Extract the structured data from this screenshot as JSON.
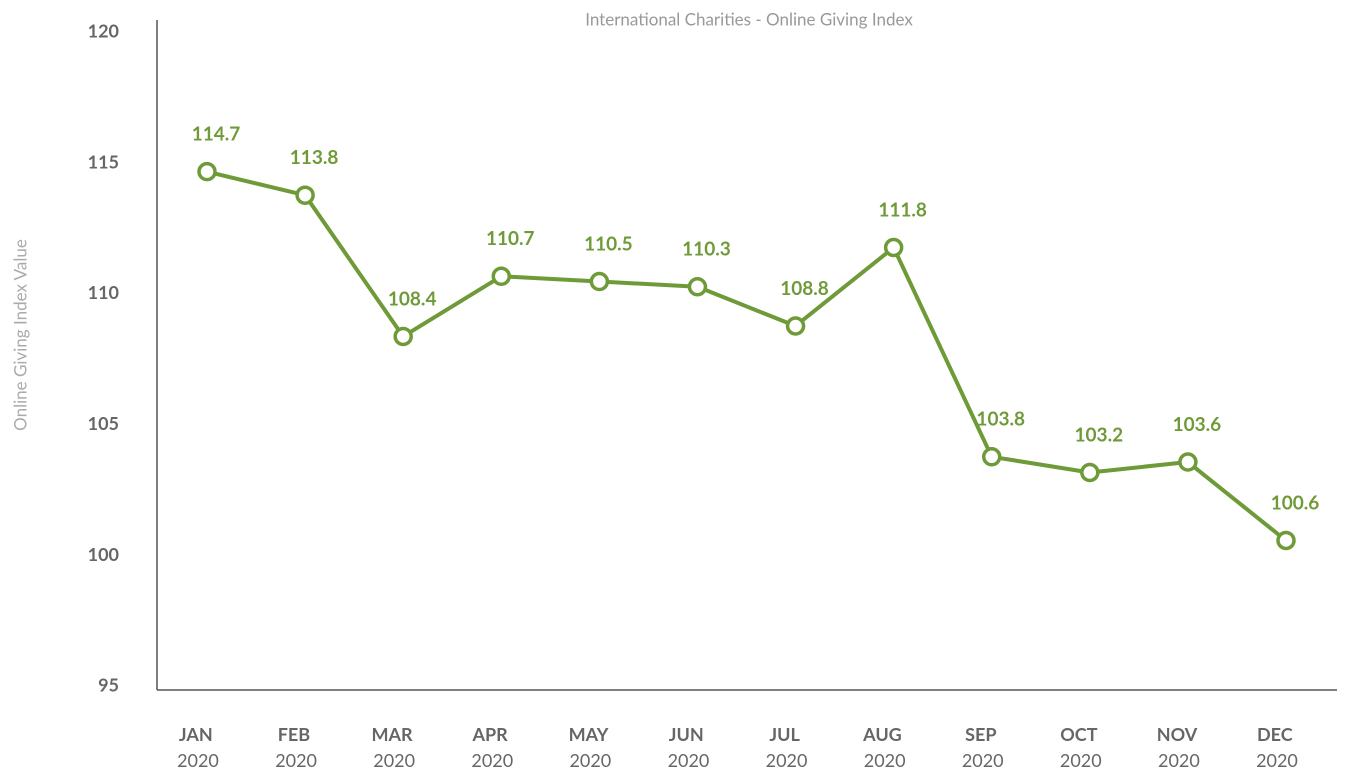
{
  "chart_data": {
    "type": "line",
    "title": "International Charities - Online Giving Index",
    "y_label": "Online Giving Index Value",
    "categories": [
      "JAN 2020",
      "FEB 2020",
      "MAR 2020",
      "APR 2020",
      "MAY 2020",
      "JUN 2020",
      "JUL 2020",
      "AUG 2020",
      "SEP 2020",
      "OCT 2020",
      "NOV 2020",
      "DEC 2020"
    ],
    "series": [
      {
        "name": "Online Giving Index",
        "color": "#6e9a38",
        "values": [
          114.7,
          113.8,
          108.4,
          110.7,
          110.5,
          110.3,
          108.8,
          111.8,
          103.8,
          103.2,
          103.6,
          100.6
        ]
      }
    ],
    "ylim": [
      95,
      120
    ],
    "yticks": [
      95,
      100,
      105,
      110,
      115,
      120
    ],
    "grid": false
  }
}
